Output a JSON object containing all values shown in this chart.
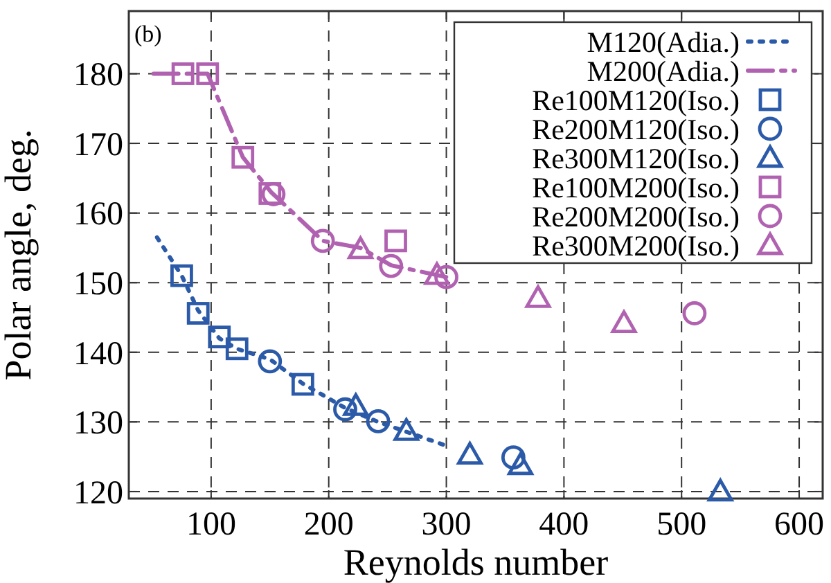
{
  "chart_data": {
    "type": "scatter",
    "xlabel": "Reynolds number",
    "ylabel": "Polar angle, deg.",
    "annotations": [
      "(b)"
    ],
    "xlim": [
      30,
      620
    ],
    "ylim": [
      119,
      189
    ],
    "xticks": [
      100,
      200,
      300,
      400,
      500,
      600
    ],
    "yticks": [
      120,
      130,
      140,
      150,
      160,
      170,
      180
    ],
    "grid": true,
    "legend": "top right",
    "series": [
      {
        "name": "M120(Adia.)",
        "type": "line",
        "color": "#2b5aa8",
        "line_style": "dotted",
        "marker": "none",
        "x": [
          54,
          75,
          89,
          107,
          122,
          150,
          178,
          214,
          242,
          298
        ],
        "values": [
          156.5,
          151,
          146,
          142,
          140.5,
          139,
          135.5,
          132,
          130,
          126.7
        ]
      },
      {
        "name": "M200(Adia.)",
        "type": "line",
        "color": "#b062b0",
        "line_style": "dashed",
        "marker": "none",
        "x": [
          51,
          76,
          97,
          127,
          151,
          195,
          227,
          253,
          300
        ],
        "values": [
          180,
          180,
          180,
          168,
          163,
          156,
          155,
          152.5,
          150.8
        ]
      },
      {
        "name": "Re100M120(Iso.)",
        "color": "#2b5aa8",
        "marker": "square",
        "x": [
          75,
          89,
          107,
          122,
          178
        ],
        "values": [
          151,
          145.6,
          142.2,
          140.5,
          135.4
        ]
      },
      {
        "name": "Re200M120(Iso.)",
        "color": "#2b5aa8",
        "marker": "circle",
        "x": [
          150,
          214,
          242,
          357
        ],
        "values": [
          138.7,
          131.8,
          130.1,
          124.9
        ]
      },
      {
        "name": "Re300M120(Iso.)",
        "color": "#2b5aa8",
        "marker": "triangle",
        "x": [
          223,
          266,
          320,
          363,
          533
        ],
        "values": [
          132.3,
          128.7,
          125.3,
          123.8,
          120
        ]
      },
      {
        "name": "Re100M200(Iso.)",
        "color": "#b062b0",
        "marker": "square",
        "x": [
          76,
          97,
          127,
          150,
          257
        ],
        "values": [
          180,
          180,
          168,
          162.8,
          156
        ]
      },
      {
        "name": "Re200M200(Iso.)",
        "color": "#b062b0",
        "marker": "circle",
        "x": [
          153,
          195,
          253,
          300,
          511
        ],
        "values": [
          162.7,
          156,
          152.4,
          150.8,
          145.6
        ]
      },
      {
        "name": "Re300M200(Iso.)",
        "color": "#b062b0",
        "marker": "triangle",
        "x": [
          227,
          292,
          378,
          451
        ],
        "values": [
          154.8,
          151.1,
          147.8,
          144.2
        ]
      }
    ]
  }
}
